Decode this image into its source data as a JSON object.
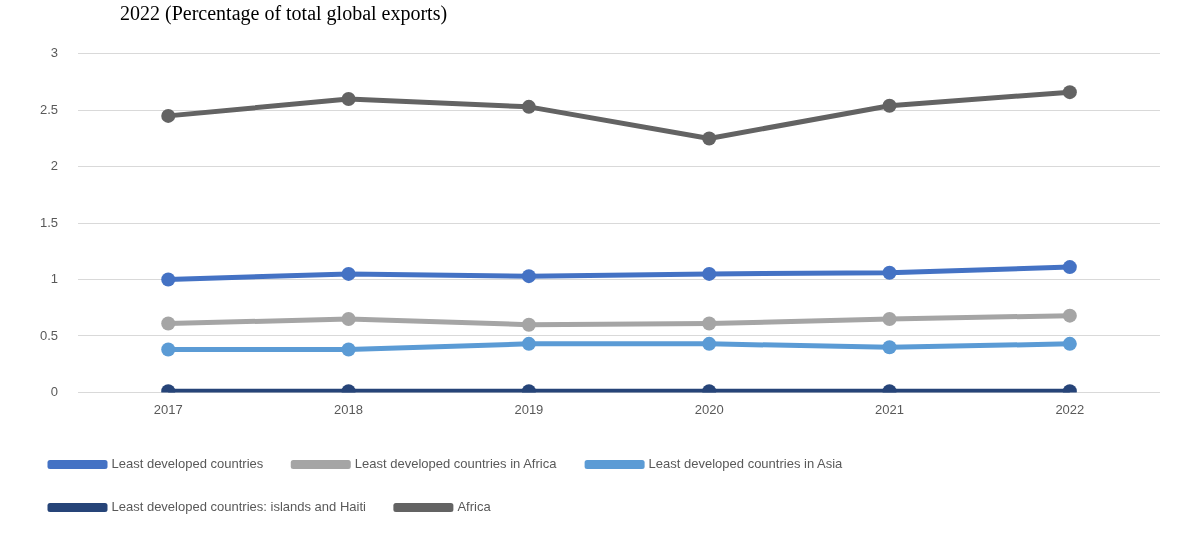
{
  "chart_data": {
    "type": "line",
    "title": "2022 (Percentage of total global exports)",
    "categories": [
      "2017",
      "2018",
      "2019",
      "2020",
      "2021",
      "2022"
    ],
    "series": [
      {
        "name": "Least developed countries",
        "color": "#4472c4",
        "values": [
          1.0,
          1.05,
          1.03,
          1.05,
          1.06,
          1.11
        ]
      },
      {
        "name": "Least developed countries in Africa",
        "color": "#a5a5a5",
        "values": [
          0.61,
          0.65,
          0.6,
          0.61,
          0.65,
          0.68
        ]
      },
      {
        "name": "Least developed countries in Asia",
        "color": "#5b9bd5",
        "values": [
          0.38,
          0.38,
          0.43,
          0.43,
          0.4,
          0.43
        ]
      },
      {
        "name": "Least developed countries: islands and Haiti",
        "color": "#264478",
        "values": [
          0.01,
          0.01,
          0.01,
          0.01,
          0.01,
          0.01
        ]
      },
      {
        "name": "Africa",
        "color": "#636363",
        "values": [
          2.45,
          2.6,
          2.53,
          2.25,
          2.54,
          2.66
        ]
      }
    ],
    "ylim": [
      0,
      3
    ],
    "yticks": [
      0,
      0.5,
      1,
      1.5,
      2,
      2.5,
      3
    ],
    "grid": "y",
    "legend": "bottom",
    "marker": "circle",
    "line_style": "solid"
  }
}
